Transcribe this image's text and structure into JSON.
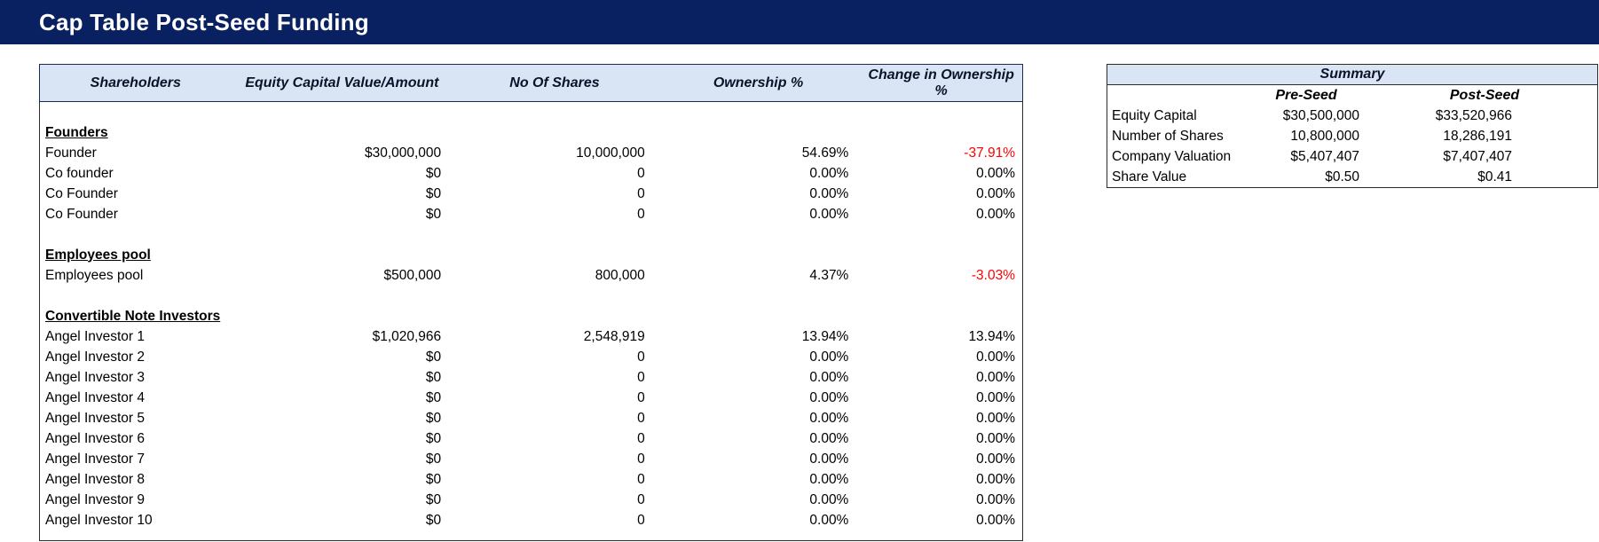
{
  "banner": {
    "title": "Cap Table Post-Seed Funding"
  },
  "colors": {
    "banner_background": "#0a2161",
    "header_fill": "#d9e4f5",
    "negative_value": "#ff0000"
  },
  "main_table": {
    "columns": [
      "Shareholders",
      "Equity Capital Value/Amount",
      "No Of Shares",
      "Ownership %",
      "Change in Ownership %"
    ],
    "rows": [
      {
        "type": "blank"
      },
      {
        "type": "section",
        "label": "Founders"
      },
      {
        "type": "data",
        "label": "Founder",
        "equity": "$30,000,000",
        "shares": "10,000,000",
        "ownership": "54.69%",
        "change": "-37.91%",
        "change_red": true
      },
      {
        "type": "data",
        "label": "Co founder",
        "equity": "$0",
        "shares": "0",
        "ownership": "0.00%",
        "change": "0.00%",
        "change_red": false
      },
      {
        "type": "data",
        "label": "Co Founder",
        "equity": "$0",
        "shares": "0",
        "ownership": "0.00%",
        "change": "0.00%",
        "change_red": false
      },
      {
        "type": "data",
        "label": "Co Founder",
        "equity": "$0",
        "shares": "0",
        "ownership": "0.00%",
        "change": "0.00%",
        "change_red": false
      },
      {
        "type": "blank"
      },
      {
        "type": "section",
        "label": "Employees pool"
      },
      {
        "type": "data",
        "label": "Employees pool",
        "equity": "$500,000",
        "shares": "800,000",
        "ownership": "4.37%",
        "change": "-3.03%",
        "change_red": true
      },
      {
        "type": "blank"
      },
      {
        "type": "section",
        "label": "Convertible Note Investors"
      },
      {
        "type": "data",
        "label": "Angel Investor 1",
        "equity": "$1,020,966",
        "shares": "2,548,919",
        "ownership": "13.94%",
        "change": "13.94%",
        "change_red": false
      },
      {
        "type": "data",
        "label": "Angel Investor 2",
        "equity": "$0",
        "shares": "0",
        "ownership": "0.00%",
        "change": "0.00%",
        "change_red": false
      },
      {
        "type": "data",
        "label": "Angel Investor 3",
        "equity": "$0",
        "shares": "0",
        "ownership": "0.00%",
        "change": "0.00%",
        "change_red": false
      },
      {
        "type": "data",
        "label": "Angel Investor 4",
        "equity": "$0",
        "shares": "0",
        "ownership": "0.00%",
        "change": "0.00%",
        "change_red": false
      },
      {
        "type": "data",
        "label": "Angel Investor 5",
        "equity": "$0",
        "shares": "0",
        "ownership": "0.00%",
        "change": "0.00%",
        "change_red": false
      },
      {
        "type": "data",
        "label": "Angel Investor 6",
        "equity": "$0",
        "shares": "0",
        "ownership": "0.00%",
        "change": "0.00%",
        "change_red": false
      },
      {
        "type": "data",
        "label": "Angel Investor 7",
        "equity": "$0",
        "shares": "0",
        "ownership": "0.00%",
        "change": "0.00%",
        "change_red": false
      },
      {
        "type": "data",
        "label": "Angel Investor 8",
        "equity": "$0",
        "shares": "0",
        "ownership": "0.00%",
        "change": "0.00%",
        "change_red": false
      },
      {
        "type": "data",
        "label": "Angel Investor 9",
        "equity": "$0",
        "shares": "0",
        "ownership": "0.00%",
        "change": "0.00%",
        "change_red": false
      },
      {
        "type": "data",
        "label": "Angel Investor 10",
        "equity": "$0",
        "shares": "0",
        "ownership": "0.00%",
        "change": "0.00%",
        "change_red": false
      },
      {
        "type": "blank"
      }
    ]
  },
  "summary_table": {
    "title": "Summary",
    "col_pre": "Pre-Seed",
    "col_post": "Post-Seed",
    "rows": [
      {
        "label": "Equity Capital",
        "pre_seed": "$30,500,000",
        "post_seed": "$33,520,966"
      },
      {
        "label": "Number of Shares",
        "pre_seed": "10,800,000",
        "post_seed": "18,286,191"
      },
      {
        "label": "Company Valuation",
        "pre_seed": "$5,407,407",
        "post_seed": "$7,407,407"
      },
      {
        "label": "Share Value",
        "pre_seed": "$0.50",
        "post_seed": "$0.41"
      }
    ]
  }
}
